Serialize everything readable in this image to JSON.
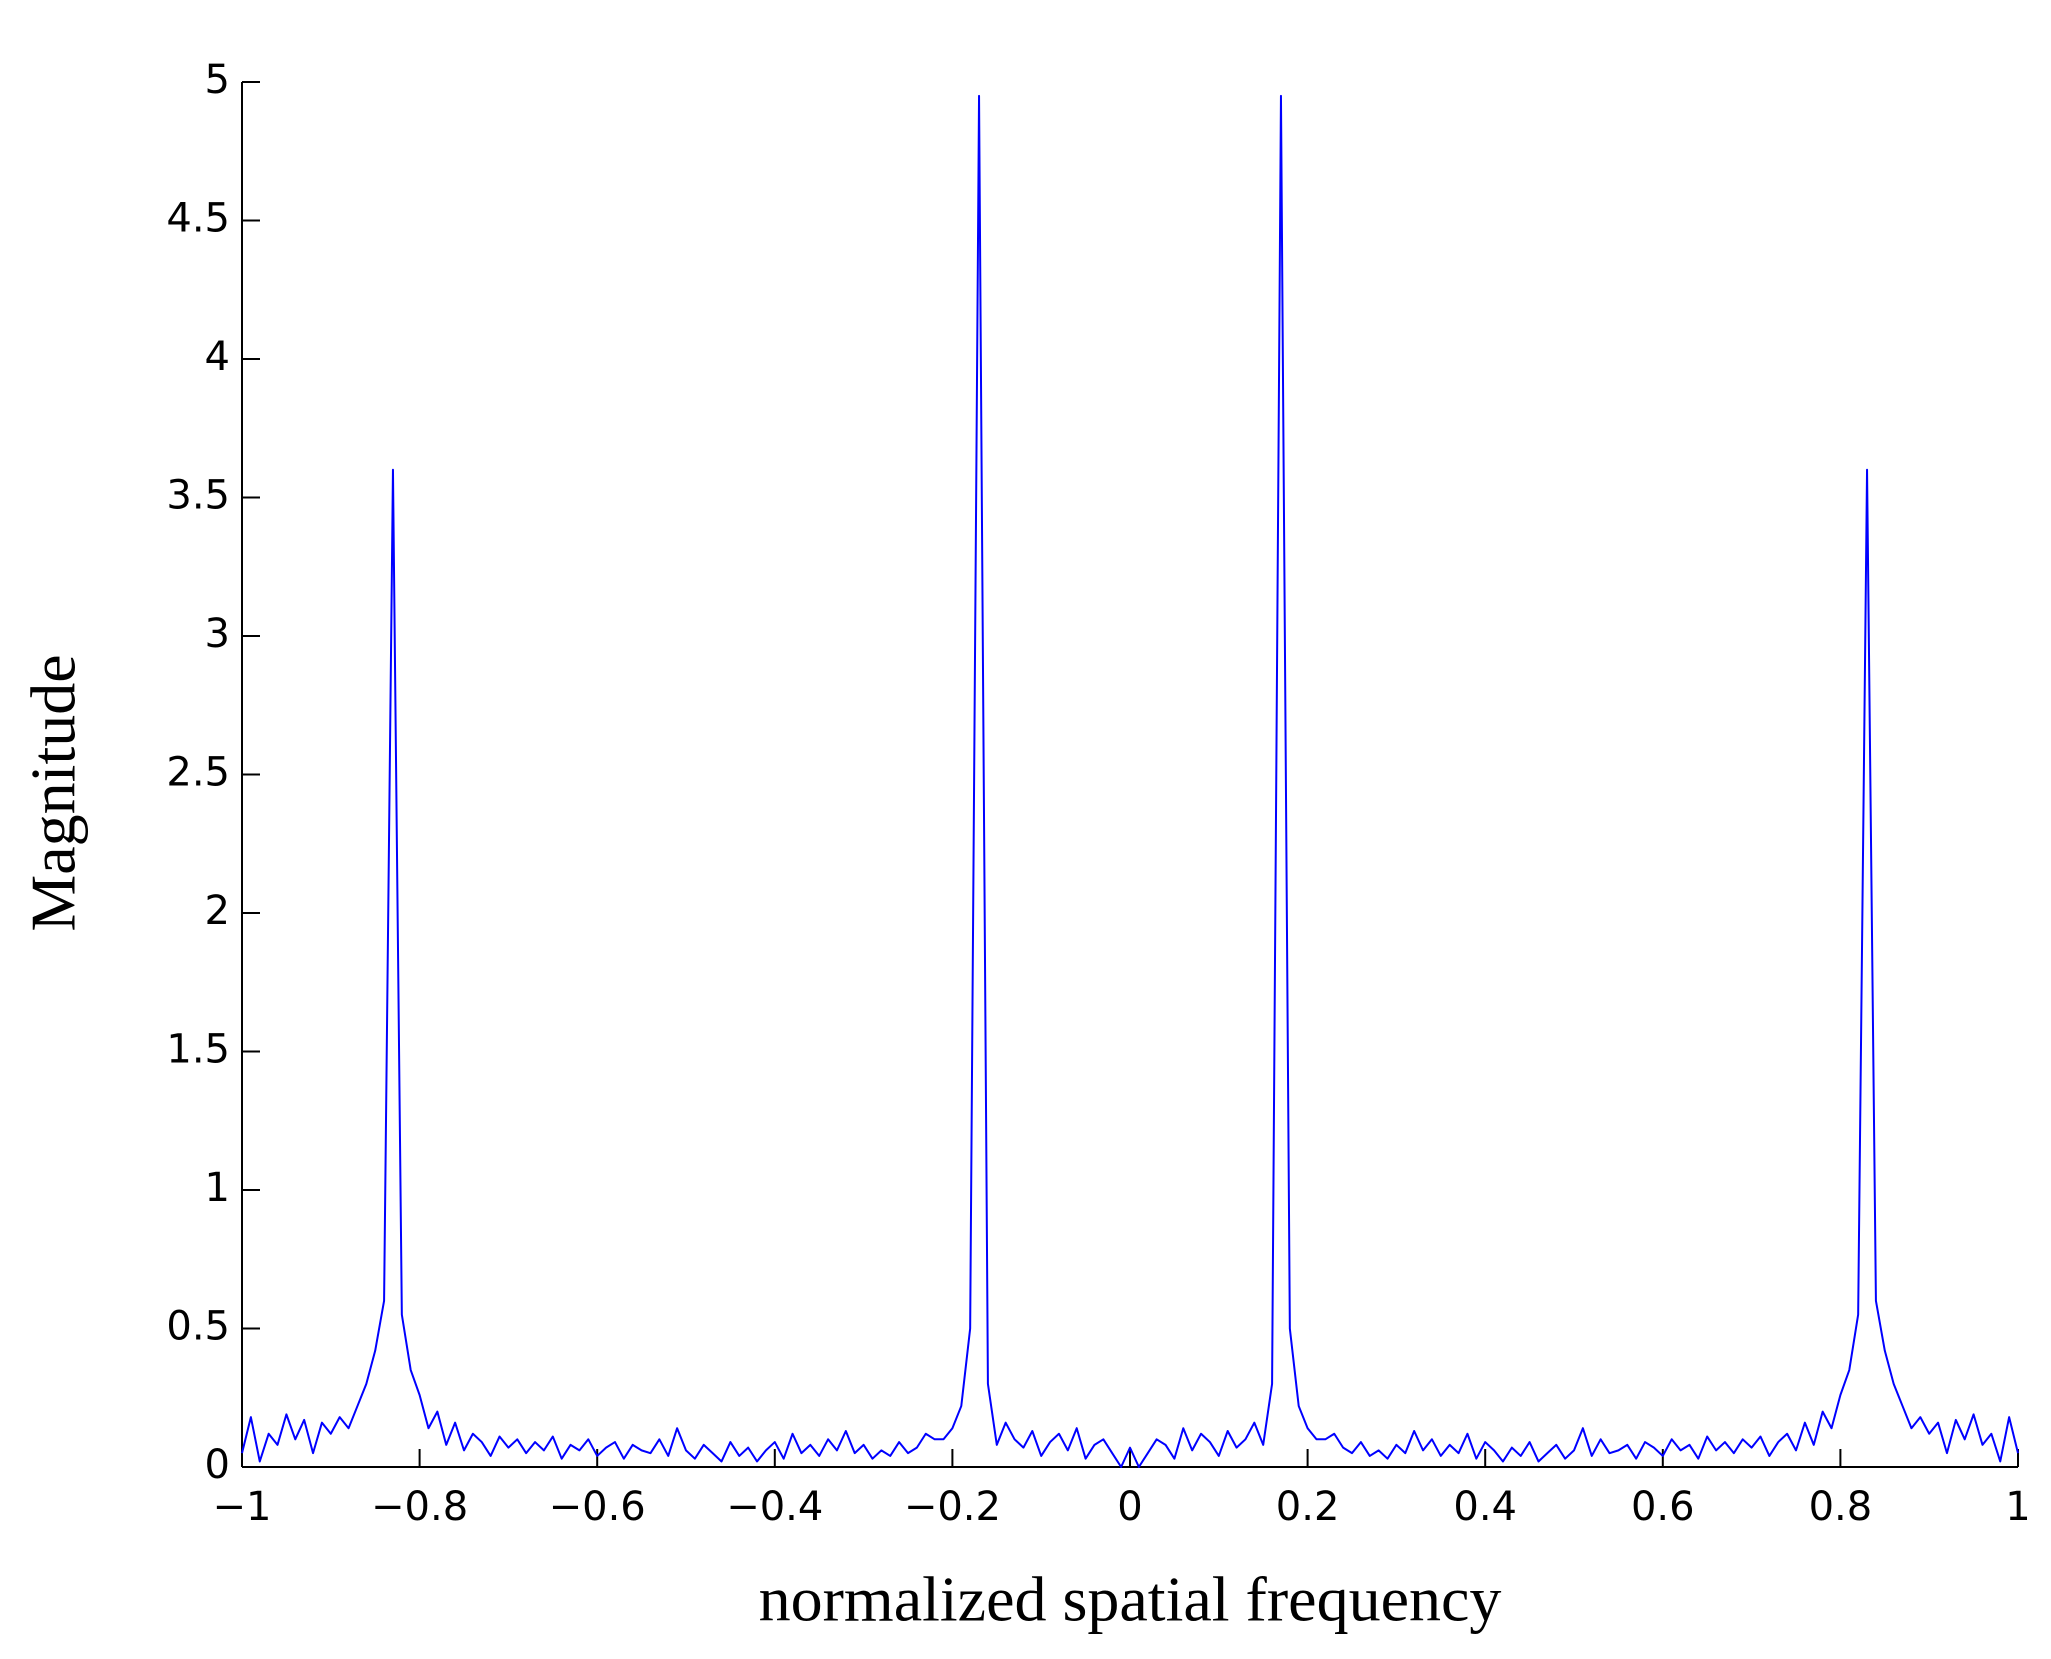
{
  "chart_data": {
    "type": "line",
    "xlabel": "normalized spatial frequency",
    "ylabel": "Magnitude",
    "x": [
      -1,
      -0.99,
      -0.98,
      -0.97,
      -0.96,
      -0.95,
      -0.94,
      -0.93,
      -0.92,
      -0.91,
      -0.9,
      -0.89,
      -0.88,
      -0.87,
      -0.86,
      -0.85,
      -0.84,
      -0.83,
      -0.82,
      -0.81,
      -0.8,
      -0.79,
      -0.78,
      -0.77,
      -0.76,
      -0.75,
      -0.74,
      -0.73,
      -0.72,
      -0.71,
      -0.7,
      -0.69,
      -0.68,
      -0.67,
      -0.66,
      -0.65,
      -0.64,
      -0.63,
      -0.62,
      -0.61,
      -0.6,
      -0.59,
      -0.58,
      -0.57,
      -0.56,
      -0.55,
      -0.54,
      -0.53,
      -0.52,
      -0.51,
      -0.5,
      -0.49,
      -0.48,
      -0.47,
      -0.46,
      -0.45,
      -0.44,
      -0.43,
      -0.42,
      -0.41,
      -0.4,
      -0.39,
      -0.38,
      -0.37,
      -0.36,
      -0.35,
      -0.34,
      -0.33,
      -0.32,
      -0.31,
      -0.3,
      -0.29,
      -0.28,
      -0.27,
      -0.26,
      -0.25,
      -0.24,
      -0.23,
      -0.22,
      -0.21,
      -0.2,
      -0.19,
      -0.18,
      -0.17,
      -0.16,
      -0.15,
      -0.14,
      -0.13,
      -0.12,
      -0.11,
      -0.1,
      -0.09,
      -0.08,
      -0.07,
      -0.06,
      -0.05,
      -0.04,
      -0.03,
      -0.02,
      -0.01,
      0,
      0.01,
      0.02,
      0.03,
      0.04,
      0.05,
      0.06,
      0.07,
      0.08,
      0.09,
      0.1,
      0.11,
      0.12,
      0.13,
      0.14,
      0.15,
      0.16,
      0.17,
      0.18,
      0.19,
      0.2,
      0.21,
      0.22,
      0.23,
      0.24,
      0.25,
      0.26,
      0.27,
      0.28,
      0.29,
      0.3,
      0.31,
      0.32,
      0.33,
      0.34,
      0.35,
      0.36,
      0.37,
      0.38,
      0.39,
      0.4,
      0.41,
      0.42,
      0.43,
      0.44,
      0.45,
      0.46,
      0.47,
      0.48,
      0.49,
      0.5,
      0.51,
      0.52,
      0.53,
      0.54,
      0.55,
      0.56,
      0.57,
      0.58,
      0.59,
      0.6,
      0.61,
      0.62,
      0.63,
      0.64,
      0.65,
      0.66,
      0.67,
      0.68,
      0.69,
      0.7,
      0.71,
      0.72,
      0.73,
      0.74,
      0.75,
      0.76,
      0.77,
      0.78,
      0.79,
      0.8,
      0.81,
      0.82,
      0.83,
      0.84,
      0.85,
      0.86,
      0.87,
      0.88,
      0.89,
      0.9,
      0.91,
      0.92,
      0.93,
      0.94,
      0.95,
      0.96,
      0.97,
      0.98,
      0.99,
      1
    ],
    "series": [
      {
        "color": "#0000ff",
        "values": [
          0.05,
          0.18,
          0.02,
          0.12,
          0.08,
          0.19,
          0.1,
          0.17,
          0.05,
          0.16,
          0.12,
          0.18,
          0.14,
          0.22,
          0.3,
          0.42,
          0.6,
          3.6,
          0.55,
          0.35,
          0.26,
          0.14,
          0.2,
          0.08,
          0.16,
          0.06,
          0.12,
          0.09,
          0.04,
          0.11,
          0.07,
          0.1,
          0.05,
          0.09,
          0.06,
          0.11,
          0.03,
          0.08,
          0.06,
          0.1,
          0.04,
          0.07,
          0.09,
          0.03,
          0.08,
          0.06,
          0.05,
          0.1,
          0.04,
          0.14,
          0.06,
          0.03,
          0.08,
          0.05,
          0.02,
          0.09,
          0.04,
          0.07,
          0.02,
          0.06,
          0.09,
          0.03,
          0.12,
          0.05,
          0.08,
          0.04,
          0.1,
          0.06,
          0.13,
          0.05,
          0.08,
          0.03,
          0.06,
          0.04,
          0.09,
          0.05,
          0.07,
          0.12,
          0.1,
          0.1,
          0.14,
          0.22,
          0.5,
          4.95,
          0.3,
          0.08,
          0.16,
          0.1,
          0.07,
          0.13,
          0.04,
          0.09,
          0.12,
          0.06,
          0.14,
          0.03,
          0.08,
          0.1,
          0.05,
          0.0,
          0.07,
          0.0,
          0.05,
          0.1,
          0.08,
          0.03,
          0.14,
          0.06,
          0.12,
          0.09,
          0.04,
          0.13,
          0.07,
          0.1,
          0.16,
          0.08,
          0.3,
          4.95,
          0.5,
          0.22,
          0.14,
          0.1,
          0.1,
          0.12,
          0.07,
          0.05,
          0.09,
          0.04,
          0.06,
          0.03,
          0.08,
          0.05,
          0.13,
          0.06,
          0.1,
          0.04,
          0.08,
          0.05,
          0.12,
          0.03,
          0.09,
          0.06,
          0.02,
          0.07,
          0.04,
          0.09,
          0.02,
          0.05,
          0.08,
          0.03,
          0.06,
          0.14,
          0.04,
          0.1,
          0.05,
          0.06,
          0.08,
          0.03,
          0.09,
          0.07,
          0.04,
          0.1,
          0.06,
          0.08,
          0.03,
          0.11,
          0.06,
          0.09,
          0.05,
          0.1,
          0.07,
          0.11,
          0.04,
          0.09,
          0.12,
          0.06,
          0.16,
          0.08,
          0.2,
          0.14,
          0.26,
          0.35,
          0.55,
          3.6,
          0.6,
          0.42,
          0.3,
          0.22,
          0.14,
          0.18,
          0.12,
          0.16,
          0.05,
          0.17,
          0.1,
          0.19,
          0.08,
          0.12,
          0.02,
          0.18,
          0.05
        ]
      }
    ],
    "xlim": [
      -1,
      1
    ],
    "ylim": [
      0,
      5
    ],
    "xticks": [
      {
        "value": -1,
        "label": "−1"
      },
      {
        "value": -0.8,
        "label": "−0.8"
      },
      {
        "value": -0.6,
        "label": "−0.6"
      },
      {
        "value": -0.4,
        "label": "−0.4"
      },
      {
        "value": -0.2,
        "label": "−0.2"
      },
      0,
      0.2,
      0.4,
      0.6,
      0.8,
      1
    ],
    "yticks": [
      0,
      0.5,
      1,
      1.5,
      2,
      2.5,
      3,
      3.5,
      4,
      4.5,
      5
    ],
    "grid": false
  }
}
